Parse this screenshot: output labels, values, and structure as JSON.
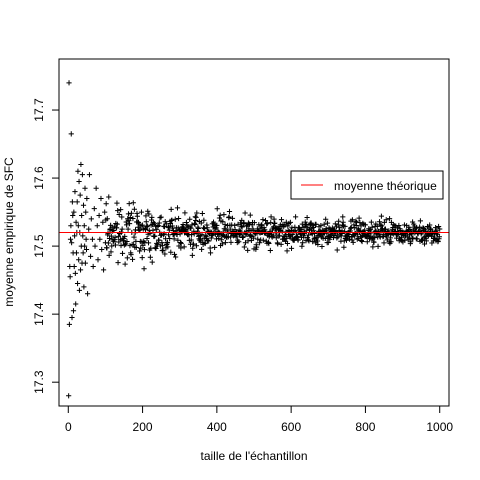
{
  "chart_data": {
    "type": "scatter",
    "title": "",
    "xlabel": "taille de l'échantillon",
    "ylabel": "moyenne empirique de SFC",
    "xlim": [
      -25,
      1025
    ],
    "ylim": [
      17.265,
      17.775
    ],
    "x_ticks": [
      0,
      200,
      400,
      600,
      800,
      1000
    ],
    "y_ticks": [
      17.3,
      17.4,
      17.5,
      17.6,
      17.7
    ],
    "grid": false,
    "legend_position": "right",
    "marker": "+",
    "point_color": "#000000",
    "reference_line": {
      "label": "moyenne théorique",
      "y": 17.52,
      "color": "#ff0000"
    },
    "points": [
      [
        1,
        17.28
      ],
      [
        2,
        17.74
      ],
      [
        3,
        17.385
      ],
      [
        4,
        17.47
      ],
      [
        5,
        17.455
      ],
      [
        6,
        17.51
      ],
      [
        7,
        17.53
      ],
      [
        8,
        17.665
      ],
      [
        9,
        17.505
      ],
      [
        10,
        17.395
      ],
      [
        11,
        17.565
      ],
      [
        12,
        17.545
      ],
      [
        13,
        17.49
      ],
      [
        14,
        17.405
      ],
      [
        15,
        17.55
      ],
      [
        16,
        17.47
      ],
      [
        17,
        17.515
      ],
      [
        18,
        17.58
      ],
      [
        19,
        17.46
      ],
      [
        20,
        17.415
      ],
      [
        21,
        17.535
      ],
      [
        22,
        17.49
      ],
      [
        23,
        17.52
      ],
      [
        24,
        17.565
      ],
      [
        25,
        17.445
      ],
      [
        26,
        17.61
      ],
      [
        27,
        17.53
      ],
      [
        28,
        17.48
      ],
      [
        29,
        17.595
      ],
      [
        30,
        17.435
      ],
      [
        31,
        17.52
      ],
      [
        32,
        17.575
      ],
      [
        33,
        17.465
      ],
      [
        34,
        17.62
      ],
      [
        35,
        17.5
      ],
      [
        36,
        17.545
      ],
      [
        37,
        17.475
      ],
      [
        38,
        17.605
      ],
      [
        39,
        17.515
      ],
      [
        40,
        17.49
      ],
      [
        41,
        17.56
      ],
      [
        42,
        17.44
      ],
      [
        43,
        17.53
      ],
      [
        44,
        17.5
      ],
      [
        45,
        17.585
      ],
      [
        46,
        17.475
      ],
      [
        47,
        17.55
      ],
      [
        48,
        17.51
      ],
      [
        49,
        17.495
      ],
      [
        50,
        17.57
      ],
      [
        52,
        17.43
      ],
      [
        55,
        17.525
      ],
      [
        57,
        17.605
      ],
      [
        60,
        17.485
      ],
      [
        62,
        17.54
      ],
      [
        65,
        17.51
      ],
      [
        67,
        17.47
      ],
      [
        70,
        17.555
      ],
      [
        72,
        17.5
      ],
      [
        75,
        17.585
      ],
      [
        78,
        17.53
      ],
      [
        80,
        17.48
      ],
      [
        83,
        17.545
      ],
      [
        85,
        17.51
      ],
      [
        88,
        17.57
      ],
      [
        90,
        17.495
      ],
      [
        93,
        17.535
      ],
      [
        95,
        17.465
      ],
      [
        98,
        17.55
      ],
      [
        100,
        17.505
      ]
    ],
    "noise_seed": 7,
    "noise_range": [
      101,
      1000
    ]
  }
}
